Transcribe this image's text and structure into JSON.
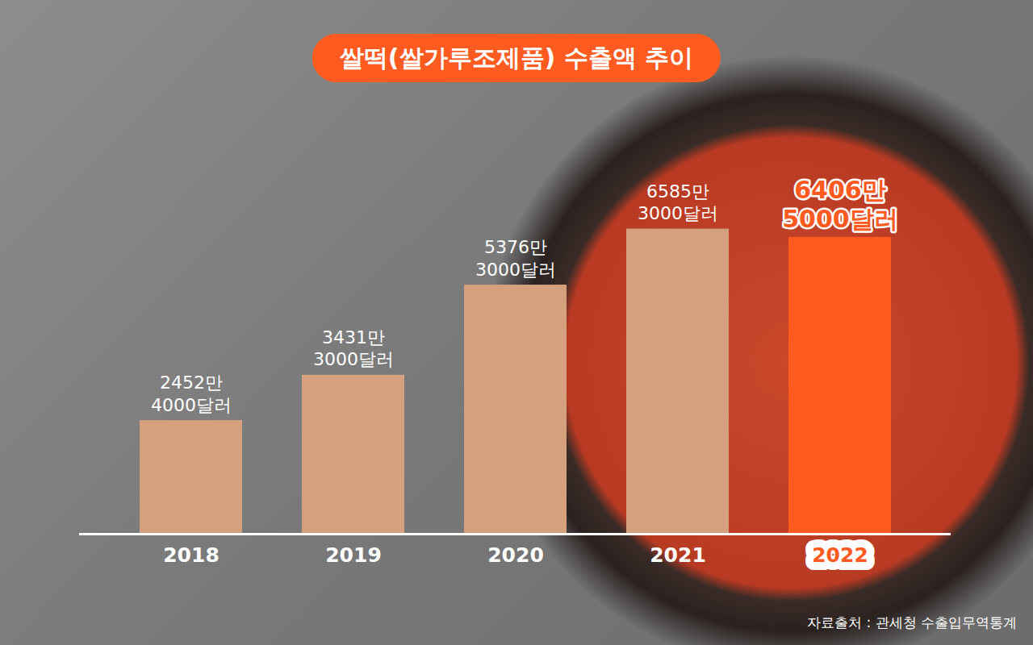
{
  "chart_data": {
    "type": "bar",
    "title": "쌀떡(쌀가루조제품) 수출액 추이",
    "caption": "자료출처 : 관세청 수출입무역통계",
    "categories": [
      "2018",
      "2019",
      "2020",
      "2021",
      "2022"
    ],
    "values": [
      24524000,
      34313000,
      53763000,
      65853000,
      64065000
    ],
    "value_labels": [
      "2452만 4000달러",
      "3431만 3000달러",
      "5376만 3000달러",
      "6585만 3000달러",
      "6406만 5000달러"
    ],
    "colors": [
      "#d4a07e",
      "#d4a07e",
      "#d4a07e",
      "#d4a07e",
      "#ff5a1f"
    ],
    "ylim": [
      0,
      75000000
    ],
    "data_labels": true,
    "tick_labels": "x"
  }
}
